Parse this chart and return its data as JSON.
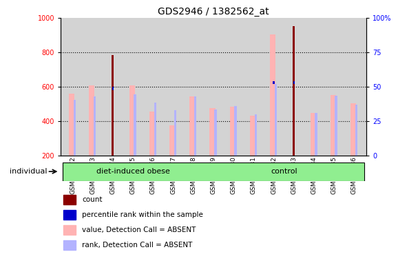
{
  "title": "GDS2946 / 1382562_at",
  "samples": [
    "GSM215572",
    "GSM215573",
    "GSM215574",
    "GSM215575",
    "GSM215576",
    "GSM215577",
    "GSM215578",
    "GSM215579",
    "GSM215580",
    "GSM215581",
    "GSM215582",
    "GSM215583",
    "GSM215584",
    "GSM215585",
    "GSM215586"
  ],
  "n_obese": 7,
  "n_control": 8,
  "value_absent": [
    560,
    607,
    200,
    608,
    456,
    375,
    543,
    475,
    483,
    433,
    905,
    200,
    450,
    554,
    505
  ],
  "rank_absent": [
    525,
    545,
    200,
    555,
    510,
    465,
    545,
    467,
    488,
    440,
    615,
    200,
    447,
    549,
    495
  ],
  "count_red": [
    null,
    null,
    785,
    null,
    null,
    null,
    null,
    null,
    null,
    null,
    null,
    955,
    null,
    null,
    null
  ],
  "pct_rank_blue": [
    null,
    null,
    590,
    null,
    null,
    null,
    null,
    null,
    null,
    null,
    625,
    625,
    null,
    null,
    null
  ],
  "ylim_left": [
    200,
    1000
  ],
  "ylim_right": [
    0,
    100
  ],
  "yticks_left": [
    200,
    400,
    600,
    800,
    1000
  ],
  "yticks_right": [
    0,
    25,
    50,
    75,
    100
  ],
  "color_value_absent": "#ffb3b3",
  "color_rank_absent": "#b3b3ff",
  "color_count": "#8b0000",
  "color_pct_rank": "#0000cc",
  "color_group_bg": "#90ee90",
  "color_plot_bg": "#d3d3d3",
  "color_fig_bg": "#ffffff",
  "group_label_obese": "diet-induced obese",
  "group_label_control": "control",
  "individual_label": "individual",
  "legend_labels": [
    "count",
    "percentile rank within the sample",
    "value, Detection Call = ABSENT",
    "rank, Detection Call = ABSENT"
  ]
}
